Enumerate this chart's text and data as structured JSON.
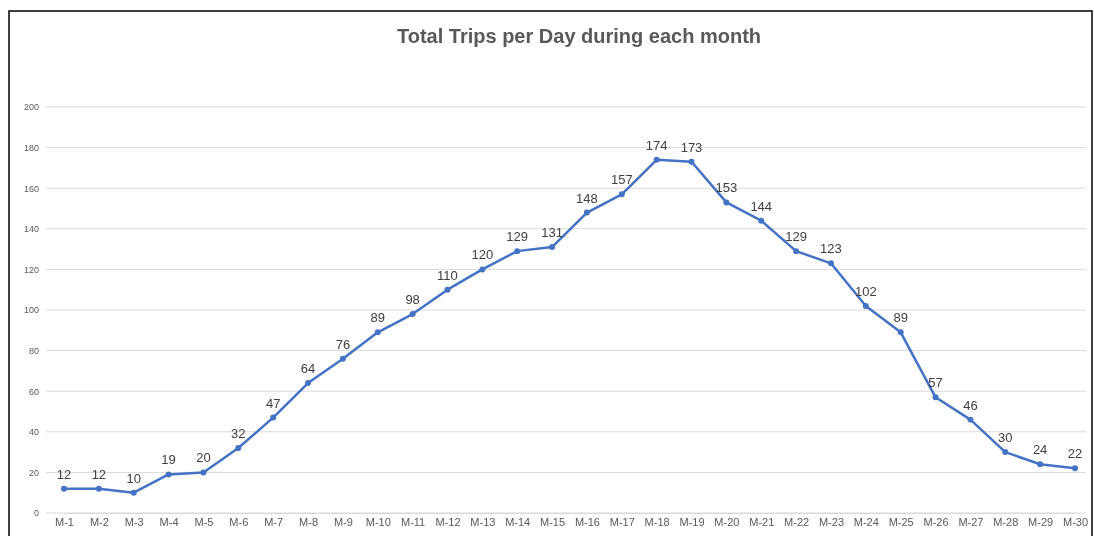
{
  "chart_data": {
    "type": "line",
    "title": "Total Trips per Day during each month",
    "categories": [
      "M-1",
      "M-2",
      "M-3",
      "M-4",
      "M-5",
      "M-6",
      "M-7",
      "M-8",
      "M-9",
      "M-10",
      "M-11",
      "M-12",
      "M-13",
      "M-14",
      "M-15",
      "M-16",
      "M-17",
      "M-18",
      "M-19",
      "M-20",
      "M-21",
      "M-22",
      "M-23",
      "M-24",
      "M-25",
      "M-26",
      "M-27",
      "M-28",
      "M-29",
      "M-30"
    ],
    "series": [
      {
        "color": "#4472c4",
        "values": [
          12,
          12,
          10,
          19,
          20,
          32,
          47,
          64,
          76,
          89,
          98,
          110,
          120,
          129,
          131,
          148,
          157,
          174,
          173,
          153,
          144,
          129,
          123,
          102,
          89,
          57,
          46,
          30,
          24,
          22
        ]
      }
    ],
    "ylim": [
      0,
      200
    ],
    "yticks": [
      0,
      20,
      40,
      60,
      80,
      100,
      120,
      140,
      160,
      180,
      200
    ],
    "grid": "y",
    "marker": "circle",
    "line_style": "solid",
    "data_labels": true
  }
}
